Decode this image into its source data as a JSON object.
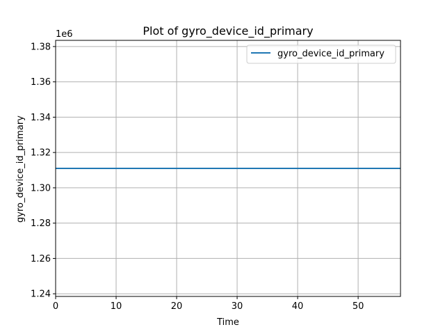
{
  "chart_data": {
    "type": "line",
    "title": "Plot of gyro_device_id_primary",
    "xlabel": "Time",
    "ylabel": "gyro_device_id_primary",
    "y_offset_label": "1e6",
    "xlim": [
      0,
      57
    ],
    "ylim": [
      1.2385,
      1.3835
    ],
    "xticks": [
      0,
      10,
      20,
      30,
      40,
      50
    ],
    "xtick_labels": [
      "0",
      "10",
      "20",
      "30",
      "40",
      "50"
    ],
    "yticks": [
      1.24,
      1.26,
      1.28,
      1.3,
      1.32,
      1.34,
      1.36,
      1.38
    ],
    "ytick_labels": [
      "1.24",
      "1.26",
      "1.28",
      "1.30",
      "1.32",
      "1.34",
      "1.36",
      "1.38"
    ],
    "grid": true,
    "legend_position": "top-right",
    "series": [
      {
        "name": "gyro_device_id_primary",
        "color": "#1f77b4",
        "x": [
          0,
          57
        ],
        "y": [
          1.311,
          1.311
        ]
      }
    ]
  }
}
